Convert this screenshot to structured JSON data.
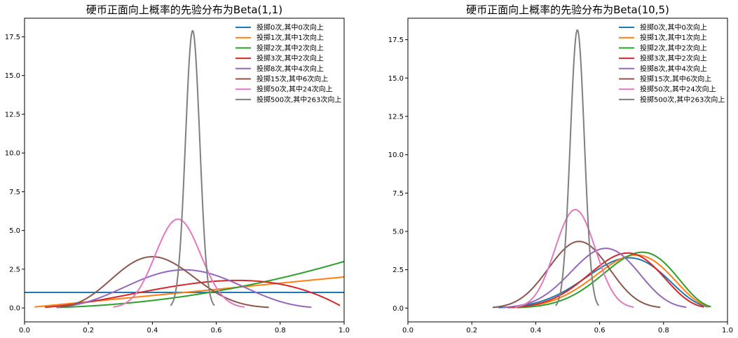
{
  "chart_data": [
    {
      "type": "line",
      "title": "硬币正面向上概率的先验分布为Beta(1,1)",
      "prior": {
        "alpha": 1,
        "beta": 1
      },
      "xlim": [
        0.0,
        1.0
      ],
      "ylim": [
        -0.9,
        18.7
      ],
      "xticks": [
        0.0,
        0.2,
        0.4,
        0.6,
        0.8,
        1.0
      ],
      "xtick_labels": [
        "0.0",
        "0.2",
        "0.4",
        "0.6",
        "0.8",
        "1.0"
      ],
      "yticks": [
        0.0,
        2.5,
        5.0,
        7.5,
        10.0,
        12.5,
        15.0,
        17.5
      ],
      "ytick_labels": [
        "0.0",
        "2.5",
        "5.0",
        "7.5",
        "10.0",
        "12.5",
        "15.0",
        "17.5"
      ],
      "legend_position": "top-right",
      "series": [
        {
          "name": "投掷0次,其中0次向上",
          "tosses": 0,
          "heads": 0,
          "color": "#1f77b4"
        },
        {
          "name": "投掷1次,其中1次向上",
          "tosses": 1,
          "heads": 1,
          "color": "#ff7f0e"
        },
        {
          "name": "投掷2次,其中2次向上",
          "tosses": 2,
          "heads": 2,
          "color": "#2ca02c"
        },
        {
          "name": "投掷3次,其中2次向上",
          "tosses": 3,
          "heads": 2,
          "color": "#d62728"
        },
        {
          "name": "投掷8次,其中4次向上",
          "tosses": 8,
          "heads": 4,
          "color": "#9467bd"
        },
        {
          "name": "投掷15次,其中6次向上",
          "tosses": 15,
          "heads": 6,
          "color": "#8c564b"
        },
        {
          "name": "投掷50次,其中24次向上",
          "tosses": 50,
          "heads": 24,
          "color": "#e377c2"
        },
        {
          "name": "投掷500次,其中263次向上",
          "tosses": 500,
          "heads": 263,
          "color": "#7f7f7f"
        }
      ]
    },
    {
      "type": "line",
      "title": "硬币正面向上概率的先验分布为Beta(10,5)",
      "prior": {
        "alpha": 10,
        "beta": 5
      },
      "xlim": [
        0.0,
        1.0
      ],
      "ylim": [
        -0.9,
        18.9
      ],
      "xticks": [
        0.0,
        0.2,
        0.4,
        0.6,
        0.8,
        1.0
      ],
      "xtick_labels": [
        "0.0",
        "0.2",
        "0.4",
        "0.6",
        "0.8",
        "1.0"
      ],
      "yticks": [
        0.0,
        2.5,
        5.0,
        7.5,
        10.0,
        12.5,
        15.0,
        17.5
      ],
      "ytick_labels": [
        "0.0",
        "2.5",
        "5.0",
        "7.5",
        "10.0",
        "12.5",
        "15.0",
        "17.5"
      ],
      "legend_position": "top-right",
      "series": [
        {
          "name": "投掷0次,其中0次向上",
          "tosses": 0,
          "heads": 0,
          "color": "#1f77b4"
        },
        {
          "name": "投掷1次,其中1次向上",
          "tosses": 1,
          "heads": 1,
          "color": "#ff7f0e"
        },
        {
          "name": "投掷2次,其中2次向上",
          "tosses": 2,
          "heads": 2,
          "color": "#2ca02c"
        },
        {
          "name": "投掷3次,其中2次向上",
          "tosses": 3,
          "heads": 2,
          "color": "#d62728"
        },
        {
          "name": "投掷8次,其中4次向上",
          "tosses": 8,
          "heads": 4,
          "color": "#9467bd"
        },
        {
          "name": "投掷15次,其中6次向上",
          "tosses": 15,
          "heads": 6,
          "color": "#8c564b"
        },
        {
          "name": "投掷50次,其中24次向上",
          "tosses": 50,
          "heads": 24,
          "color": "#e377c2"
        },
        {
          "name": "投掷500次,其中263次向上",
          "tosses": 500,
          "heads": 263,
          "color": "#7f7f7f"
        }
      ]
    }
  ]
}
